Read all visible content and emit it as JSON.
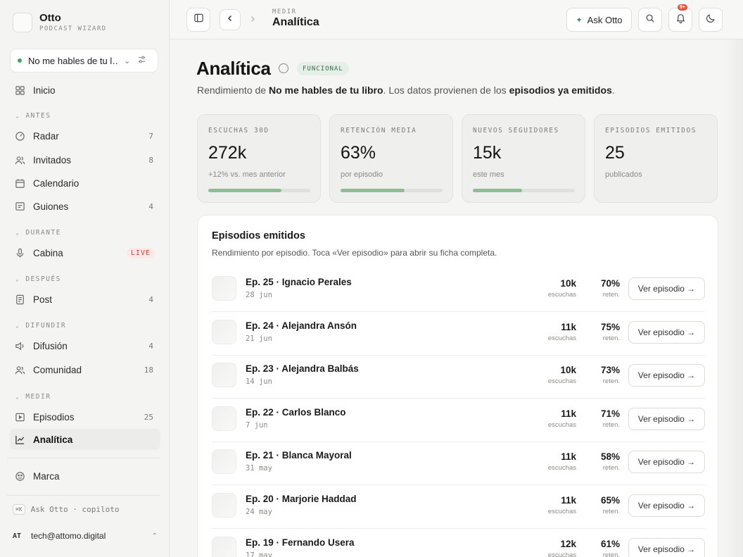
{
  "brand": {
    "name": "Otto",
    "subtitle": "PODCAST WIZARD"
  },
  "podcast_selector": {
    "value": "No me hables de tu l…"
  },
  "sidebar": {
    "items": [
      {
        "label": "Inicio",
        "icon": "grid-icon",
        "count": ""
      },
      {
        "label": "Radar",
        "icon": "radar-icon",
        "count": "7"
      },
      {
        "label": "Invitados",
        "icon": "users-icon",
        "count": "8"
      },
      {
        "label": "Calendario",
        "icon": "calendar-icon",
        "count": ""
      },
      {
        "label": "Guiones",
        "icon": "script-icon",
        "count": "4"
      },
      {
        "label": "Cabina",
        "icon": "mic-icon",
        "badge": "LIVE"
      },
      {
        "label": "Post",
        "icon": "document-icon",
        "count": "4"
      },
      {
        "label": "Difusión",
        "icon": "broadcast-icon",
        "count": "4"
      },
      {
        "label": "Comunidad",
        "icon": "users-icon",
        "count": "18"
      },
      {
        "label": "Episodios",
        "icon": "play-box-icon",
        "count": "25"
      },
      {
        "label": "Analítica",
        "icon": "chart-icon",
        "count": ""
      },
      {
        "label": "Marca",
        "icon": "palette-icon",
        "count": ""
      }
    ],
    "sections": [
      "ANTES",
      "DURANTE",
      "DESPUÉS",
      "DIFUNDIR",
      "MEDIR"
    ],
    "ask_kbd": "⌘K",
    "ask_label": "Ask Otto · copiloto",
    "user_initials": "AT",
    "user_email": "tech@attomo.digital"
  },
  "topbar": {
    "crumb_small": "MEDIR",
    "crumb_title": "Analítica",
    "ask_label": "Ask Otto",
    "notif_badge": "9+"
  },
  "page": {
    "title": "Analítica",
    "badge": "FUNCIONAL",
    "sub_pre": "Rendimiento de ",
    "sub_podcast": "No me hables de tu libro",
    "sub_mid": ". Los datos provienen de los ",
    "sub_bold": "episodios ya emitidos",
    "sub_end": "."
  },
  "kpis": [
    {
      "label": "ESCUCHAS 30D",
      "value": "272k",
      "note": "+12% vs. mes anterior",
      "progress": 0.72
    },
    {
      "label": "RETENCIÓN MEDIA",
      "value": "63%",
      "note": "por episodio",
      "progress": 0.63
    },
    {
      "label": "NUEVOS SEGUIDORES",
      "value": "15k",
      "note": "este mes",
      "progress": 0.48
    },
    {
      "label": "EPISODIOS EMITIDOS",
      "value": "25",
      "note": "publicados",
      "progress": 0
    }
  ],
  "episodes": {
    "title": "Episodios emitidos",
    "subtitle": "Rendimiento por episodio. Toca «Ver episodio» para abrir su ficha completa.",
    "listens_unit": "escuchas",
    "ret_unit": "reten.",
    "button_label": "Ver episodio →",
    "rows": [
      {
        "name": "Ep. 25 · Ignacio Perales",
        "date": "28 jun",
        "listens": "10k",
        "ret": "70%"
      },
      {
        "name": "Ep. 24 · Alejandra Ansón",
        "date": "21 jun",
        "listens": "11k",
        "ret": "75%"
      },
      {
        "name": "Ep. 23 · Alejandra Balbás",
        "date": "14 jun",
        "listens": "10k",
        "ret": "73%"
      },
      {
        "name": "Ep. 22 · Carlos Blanco",
        "date": "7 jun",
        "listens": "11k",
        "ret": "71%"
      },
      {
        "name": "Ep. 21 · Blanca Mayoral",
        "date": "31 may",
        "listens": "11k",
        "ret": "58%"
      },
      {
        "name": "Ep. 20 · Marjorie Haddad",
        "date": "24 may",
        "listens": "11k",
        "ret": "65%"
      },
      {
        "name": "Ep. 19 · Fernando Usera",
        "date": "17 may",
        "listens": "12k",
        "ret": "61%"
      }
    ]
  }
}
